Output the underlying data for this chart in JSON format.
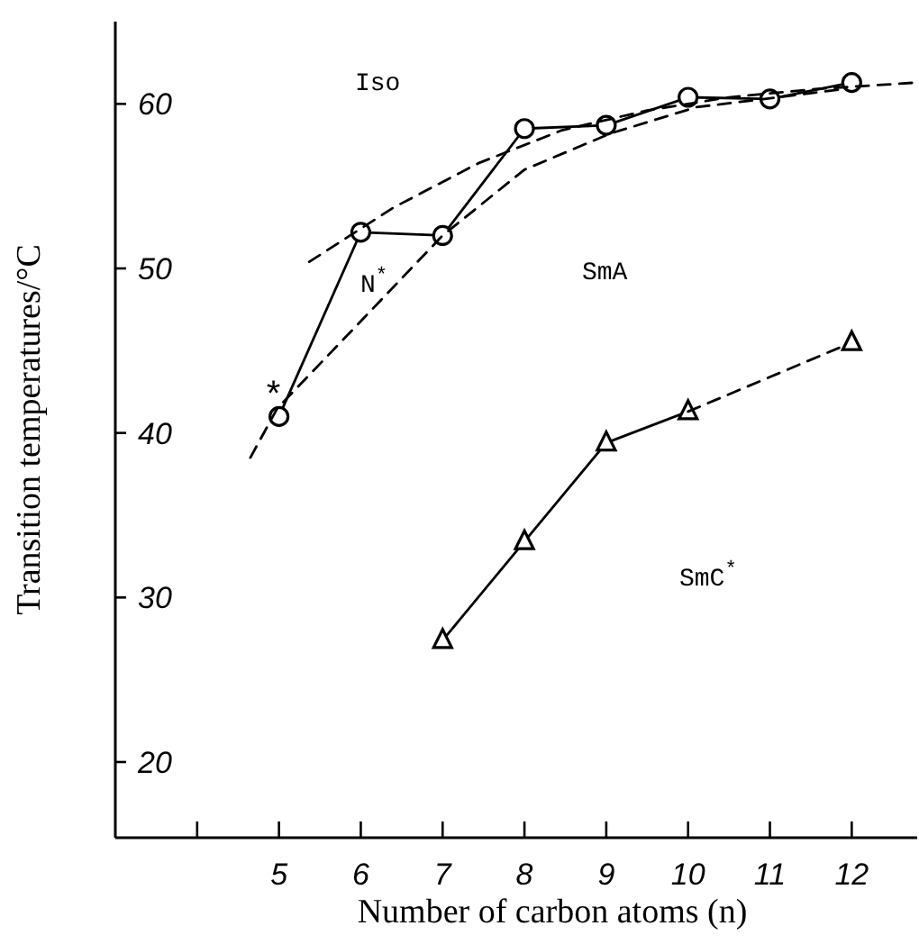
{
  "chart_data": {
    "type": "line",
    "xlabel": "Number of carbon atoms (n)",
    "ylabel": "Transition temperatures/°C",
    "xlim": [
      3,
      12.8
    ],
    "xticks": [
      {
        "value": 4,
        "label": null
      },
      5,
      6,
      7,
      8,
      9,
      10,
      11,
      12
    ],
    "ylim": [
      15.4,
      65
    ],
    "yticks": [
      20,
      30,
      40,
      50,
      60
    ],
    "grid": false,
    "series": [
      {
        "color": "#000000",
        "x": [
          5,
          6,
          7,
          8,
          9,
          10,
          11,
          12
        ],
        "values": [
          41,
          52.2,
          52,
          58.5,
          58.7,
          60.4,
          60.3,
          61.3
        ],
        "marker": "circle",
        "line_style": "solid"
      },
      {
        "color": "#000000",
        "x": [
          7,
          8,
          9,
          10
        ],
        "values": [
          27.4,
          33.4,
          39.4,
          41.3
        ],
        "marker": "triangle",
        "line_style": "solid"
      },
      {
        "color": "#000000",
        "x": [
          10,
          12
        ],
        "values": [
          41.3,
          45.5
        ],
        "marker": "none",
        "line_style": "dashed"
      },
      {
        "type": "scatter",
        "color": "#000000",
        "x": [
          12
        ],
        "values": [
          45.5
        ],
        "marker": "triangle"
      },
      {
        "color": "#000000",
        "x": [
          5.37,
          6.4,
          7.44,
          8.46,
          9.5,
          10.5,
          11.55,
          12.5,
          12.8
        ],
        "values": [
          50.4,
          53.7,
          56.4,
          58.4,
          59.6,
          60.4,
          60.9,
          61.2,
          61.3
        ],
        "marker": "none",
        "line_style": "dashed"
      },
      {
        "color": "#000000",
        "x": [
          4.65,
          4.98,
          6.04,
          7.0,
          8.0,
          9.05,
          10.1,
          11.1,
          11.9
        ],
        "values": [
          38.5,
          41.5,
          47,
          52,
          56,
          58.2,
          59.8,
          60.4,
          60.9
        ],
        "marker": "none",
        "line_style": "dashed"
      }
    ],
    "annotations": [
      "Iso",
      "N$^{*}$",
      "SmA",
      "SmC$^{*}$",
      {
        "text": "*",
        "x": 5,
        "y": 41
      }
    ]
  }
}
